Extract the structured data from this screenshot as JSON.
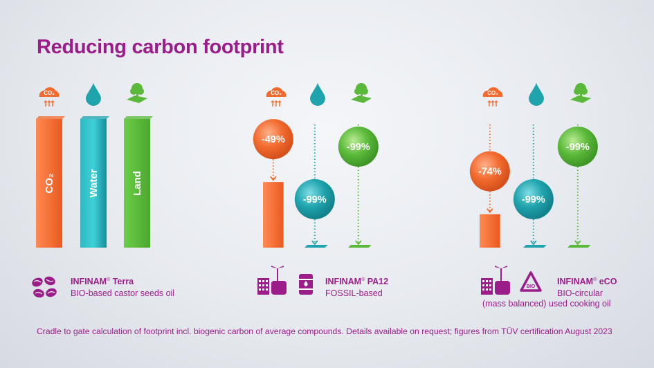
{
  "title": "Reducing carbon footprint",
  "colors": {
    "co2": "#f26a2e",
    "water": "#1fa3ad",
    "land": "#5ab93a",
    "brand": "#9b1d8a"
  },
  "chart_data": {
    "type": "bar",
    "title": "Reducing carbon footprint",
    "categories": [
      "CO₂",
      "Water",
      "Land"
    ],
    "baseline_labels": [
      "CO₂",
      "Water",
      "Land"
    ],
    "icons": [
      "co2-cloud-icon",
      "water-drop-icon",
      "land-tree-icon"
    ],
    "icon_text": "CO₂",
    "series": [
      {
        "name": "INFINAM® Terra",
        "values": [
          100,
          100,
          100
        ]
      },
      {
        "name": "INFINAM® PA12",
        "values": [
          51,
          1,
          1
        ],
        "reduction_labels": [
          "-49%",
          "-99%",
          "-99%"
        ]
      },
      {
        "name": "INFINAM® eCO",
        "values": [
          26,
          1,
          1
        ],
        "reduction_labels": [
          "-74%",
          "-99%",
          "-99%"
        ]
      }
    ]
  },
  "products": [
    {
      "brand": "INFINAM",
      "reg": "®",
      "name": " Terra",
      "sub": "BIO-based castor seeds oil",
      "icons": [
        "castor-seeds-icon"
      ]
    },
    {
      "brand": "INFINAM",
      "reg": "®",
      "name": " PA12",
      "sub": "FOSSIL-based",
      "icons": [
        "industry-plant-icon",
        "oil-barrel-icon"
      ]
    },
    {
      "brand": "INFINAM",
      "reg": "®",
      "name": " eCO",
      "sub": "BIO-circular",
      "sub2": "(mass balanced) used cooking oil",
      "icons": [
        "industry-plant-icon",
        "bio-recycle-icon"
      ],
      "badge": "BIO"
    }
  ],
  "footnote": "Cradle to gate calculation of footprint incl. biogenic carbon of average compounds. Details available on request; figures from TÜV certification August 2023"
}
